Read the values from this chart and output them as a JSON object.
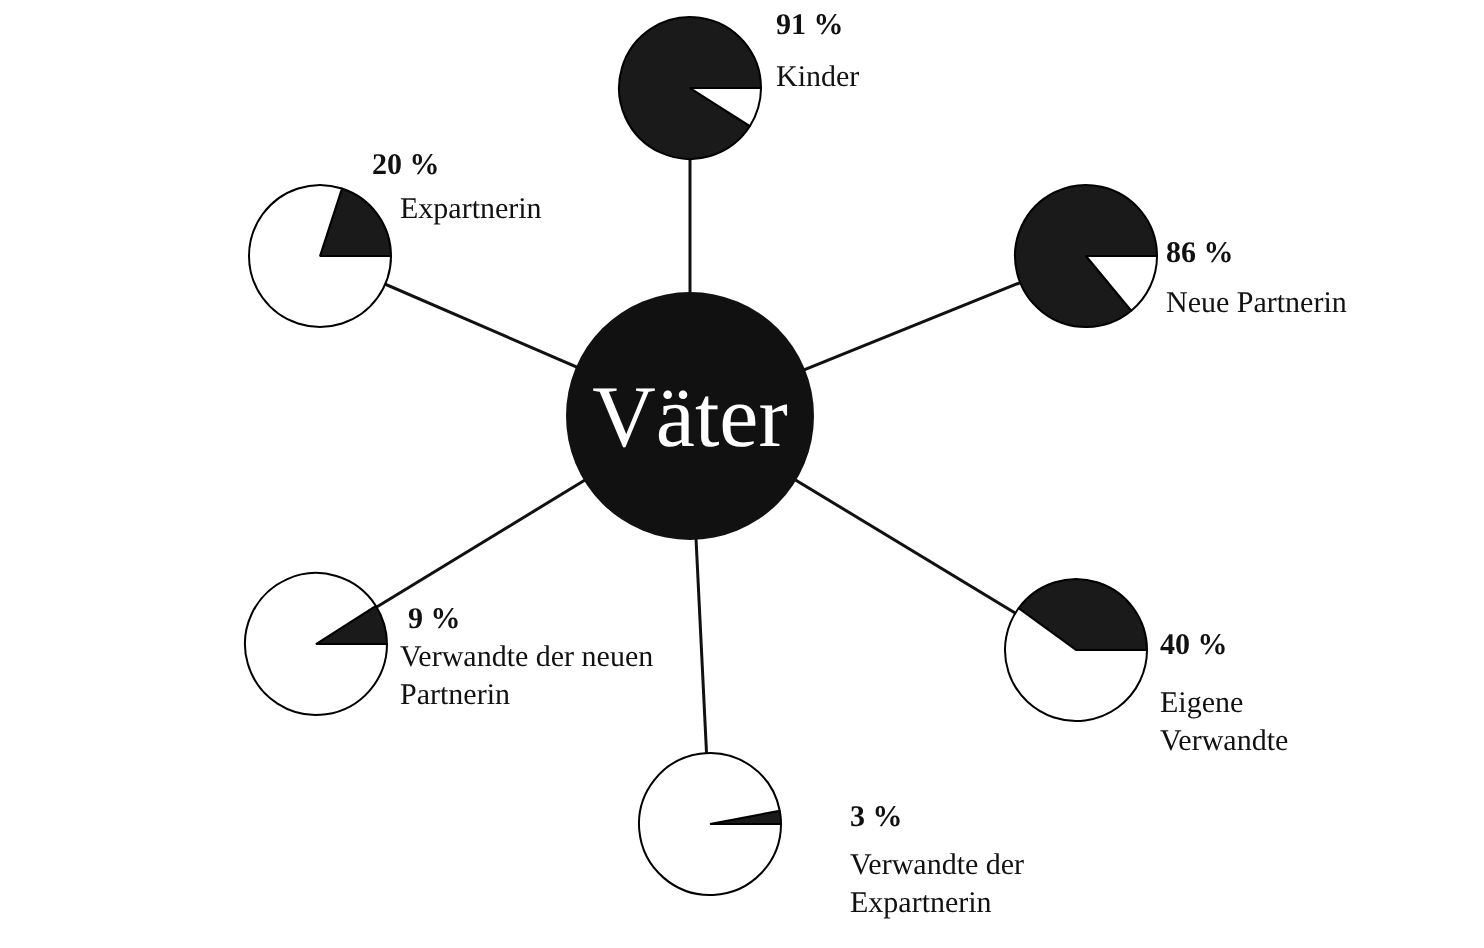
{
  "chart_data": [
    {
      "type": "other",
      "title": "Väter"
    },
    {
      "type": "pie",
      "categories": [
        "Kinder",
        null
      ],
      "values": [
        91,
        9
      ],
      "colors": [
        "#1a1a1a",
        "#ffffff"
      ],
      "value_labels": [
        "91 %",
        null
      ]
    },
    {
      "type": "pie",
      "categories": [
        "Neue Partnerin",
        null
      ],
      "values": [
        86,
        14
      ],
      "colors": [
        "#1a1a1a",
        "#ffffff"
      ],
      "value_labels": [
        "86 %",
        null
      ]
    },
    {
      "type": "pie",
      "categories": [
        "Eigene Verwandte",
        null
      ],
      "values": [
        40,
        60
      ],
      "colors": [
        "#1a1a1a",
        "#ffffff"
      ],
      "value_labels": [
        "40 %",
        null
      ]
    },
    {
      "type": "pie",
      "categories": [
        "Verwandte der Expartnerin",
        null
      ],
      "values": [
        3,
        97
      ],
      "colors": [
        "#1a1a1a",
        "#ffffff"
      ],
      "value_labels": [
        "3 %",
        null
      ]
    },
    {
      "type": "pie",
      "categories": [
        "Verwandte der neuen Partnerin",
        null
      ],
      "values": [
        9,
        91
      ],
      "colors": [
        "#1a1a1a",
        "#ffffff"
      ],
      "value_labels": [
        "9 %",
        null
      ]
    },
    {
      "type": "pie",
      "categories": [
        "Expartnerin",
        null
      ],
      "values": [
        20,
        80
      ],
      "colors": [
        "#1a1a1a",
        "#ffffff"
      ],
      "value_labels": [
        "20 %",
        null
      ]
    }
  ]
}
